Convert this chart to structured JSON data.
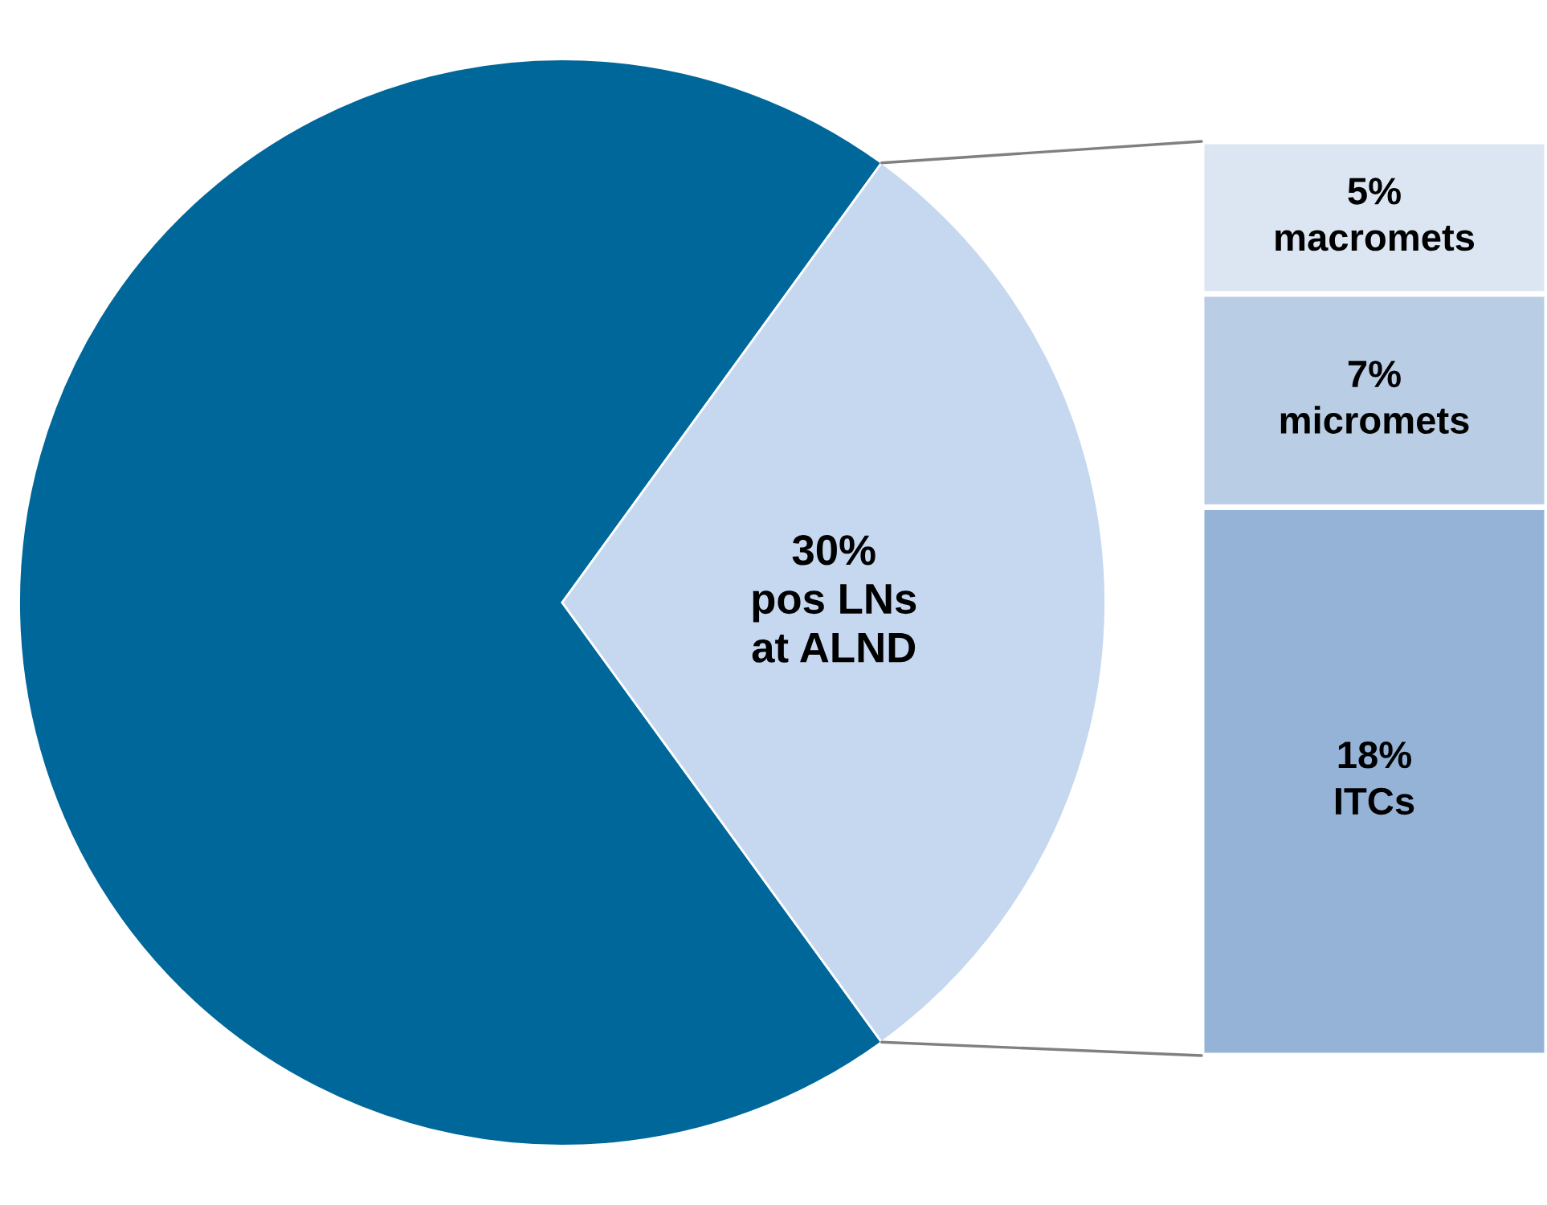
{
  "chart_data": [
    {
      "type": "pie",
      "categories": [
        null,
        "30%\npos LNs\nat ALND"
      ],
      "values": [
        70,
        30
      ],
      "colors": [
        "#00679a",
        "#c5d8ef"
      ]
    },
    {
      "type": "bar",
      "stacked": true,
      "categories": [
        null
      ],
      "series": [
        {
          "color": "#95b3d7",
          "values": [
            18
          ],
          "value_labels": [
            "18%\nITCs"
          ]
        },
        {
          "color": "#b9cde5",
          "values": [
            7
          ],
          "value_labels": [
            "7%\nmicromets"
          ]
        },
        {
          "color": "#dce6f2",
          "values": [
            5
          ],
          "value_labels": [
            "5%\nmacromets"
          ]
        }
      ]
    }
  ]
}
